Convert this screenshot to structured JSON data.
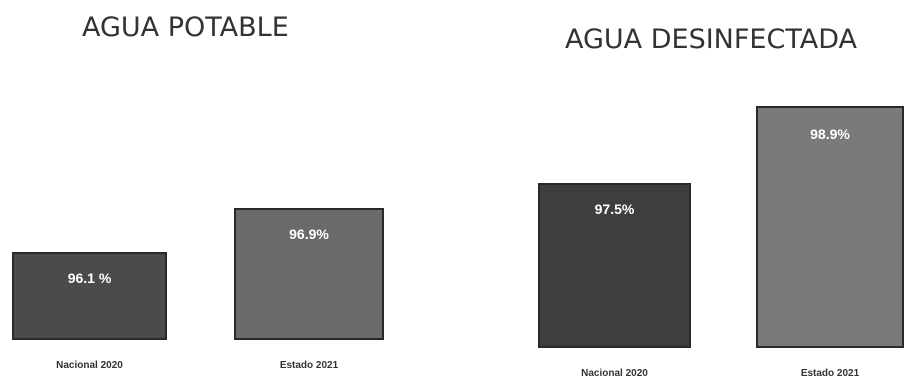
{
  "chart_data": [
    {
      "type": "bar",
      "title": "AGUA POTABLE",
      "categories": [
        "Nacional 2020",
        "Estado 2021"
      ],
      "values": [
        96.1,
        96.9
      ],
      "value_labels": [
        "96.1 %",
        "96.9%"
      ],
      "colors": [
        "#4b4b4b",
        "#6a6a6a"
      ],
      "xlabel": "",
      "ylabel": ""
    },
    {
      "type": "bar",
      "title": "AGUA DESINFECTADA",
      "categories": [
        "Nacional 2020",
        "Estado 2021"
      ],
      "values": [
        97.5,
        98.9
      ],
      "value_labels": [
        "97.5%",
        "98.9%"
      ],
      "colors": [
        "#3e3e3e",
        "#7a7a7a"
      ],
      "xlabel": "",
      "ylabel": ""
    }
  ]
}
